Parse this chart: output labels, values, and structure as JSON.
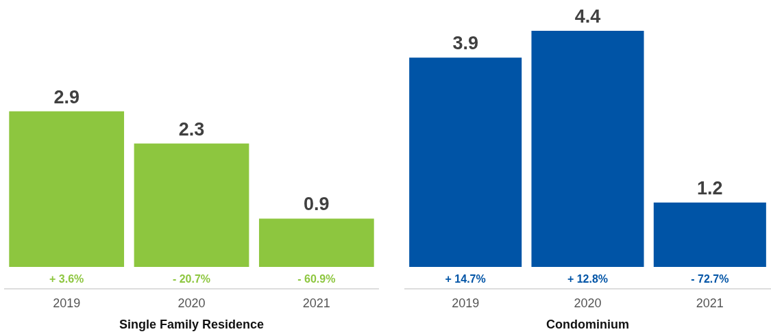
{
  "chart_data": [
    {
      "type": "bar",
      "xlabel": "Single Family Residence",
      "categories": [
        "2019",
        "2020",
        "2021"
      ],
      "values": [
        2.9,
        2.3,
        0.9
      ],
      "color": "#8dc63f",
      "data_labels": true,
      "annotations": [
        {
          "text": "+ 3.6%",
          "x": "2019",
          "y": 0
        },
        {
          "text": "- 20.7%",
          "x": "2020",
          "y": 0
        },
        {
          "text": "- 60.9%",
          "x": "2021",
          "y": 0
        }
      ]
    },
    {
      "type": "bar",
      "xlabel": "Condominium",
      "categories": [
        "2019",
        "2020",
        "2021"
      ],
      "values": [
        3.9,
        4.4,
        1.2
      ],
      "color": "#0054a6",
      "data_labels": true,
      "annotations": [
        {
          "text": "+ 14.7%",
          "x": "2019",
          "y": 0
        },
        {
          "text": "+ 12.8%",
          "x": "2020",
          "y": 0
        },
        {
          "text": "- 72.7%",
          "x": "2021",
          "y": 0
        }
      ]
    }
  ]
}
